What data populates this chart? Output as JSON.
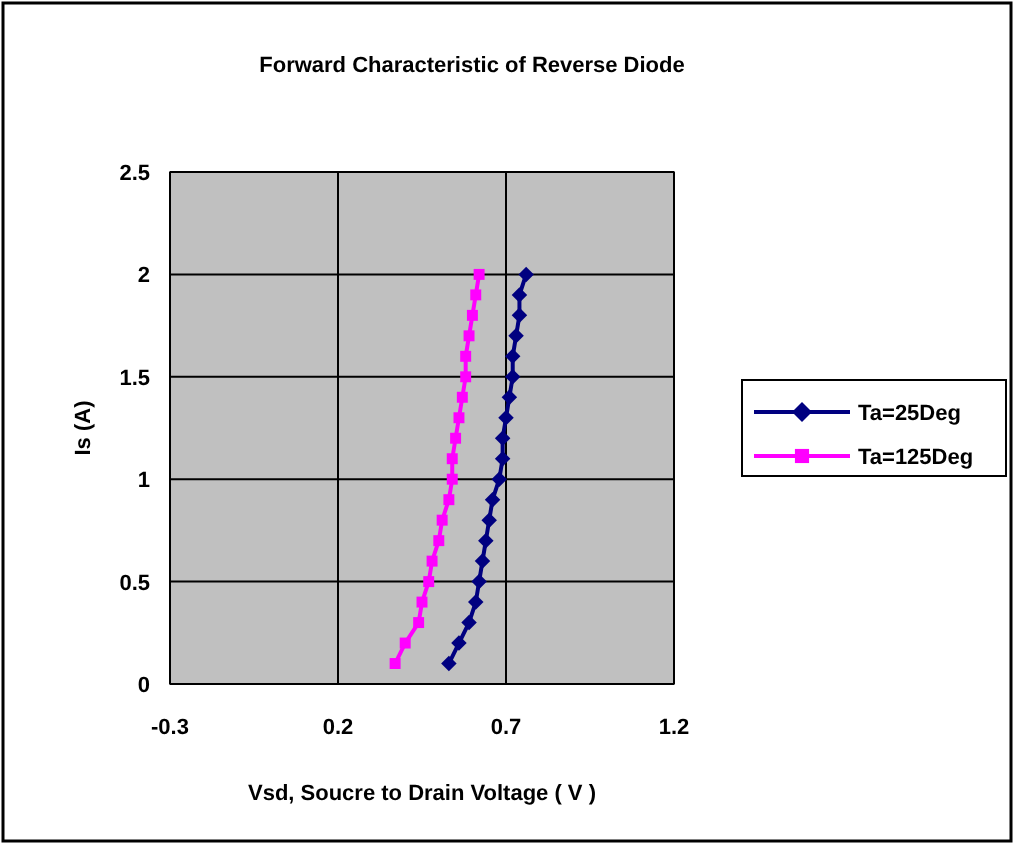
{
  "chart_data": {
    "type": "line",
    "title": "Forward Characteristic of Reverse Diode",
    "xlabel": "Vsd, Soucre to Drain Voltage ( V )",
    "ylabel": "Is (A)",
    "xlim": [
      -0.3,
      1.2
    ],
    "xticks": [
      -0.3,
      0.2,
      0.7,
      1.2
    ],
    "ylim": [
      0,
      2.5
    ],
    "yticks": [
      0,
      0.5,
      1,
      1.5,
      2,
      2.5
    ],
    "grid": true,
    "legend": "right",
    "line_style": "solid",
    "series": [
      {
        "name": "Ta=25Deg",
        "color": "#000080",
        "marker": "diamond",
        "x": [
          0.53,
          0.56,
          0.59,
          0.61,
          0.62,
          0.63,
          0.64,
          0.65,
          0.66,
          0.68,
          0.69,
          0.69,
          0.7,
          0.71,
          0.72,
          0.72,
          0.73,
          0.74,
          0.74,
          0.76
        ],
        "values": [
          0.1,
          0.2,
          0.3,
          0.4,
          0.5,
          0.6,
          0.7,
          0.8,
          0.9,
          1,
          1.1,
          1.2,
          1.3,
          1.4,
          1.5,
          1.6,
          1.7,
          1.8,
          1.9,
          2
        ]
      },
      {
        "name": "Ta=125Deg",
        "color": "#ff00ff",
        "marker": "square",
        "x": [
          0.37,
          0.4,
          0.44,
          0.45,
          0.47,
          0.48,
          0.5,
          0.51,
          0.53,
          0.54,
          0.54,
          0.55,
          0.56,
          0.57,
          0.58,
          0.58,
          0.59,
          0.6,
          0.61,
          0.62
        ],
        "values": [
          0.1,
          0.2,
          0.3,
          0.4,
          0.5,
          0.6,
          0.7,
          0.8,
          0.9,
          1,
          1.1,
          1.2,
          1.3,
          1.4,
          1.5,
          1.6,
          1.7,
          1.8,
          1.9,
          2
        ]
      }
    ]
  }
}
